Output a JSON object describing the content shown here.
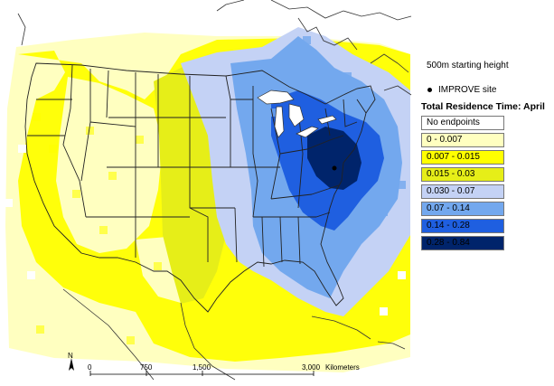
{
  "legend": {
    "height_label": "500m starting height",
    "site_label": "IMPROVE site",
    "title": "Total Residence Time: April",
    "classes": [
      {
        "label": "No endpoints",
        "color": "#ffffff"
      },
      {
        "label": "0 - 0.007",
        "color": "#ffffc0"
      },
      {
        "label": "0.007 - 0.015",
        "color": "#ffff00"
      },
      {
        "label": "0.015 - 0.03",
        "color": "#e6ee18"
      },
      {
        "label": "0.030 - 0.07",
        "color": "#c4d2f5"
      },
      {
        "label": "0.07 - 0.14",
        "color": "#73a8ee"
      },
      {
        "label": "0.14 - 0.28",
        "color": "#1f5fe0"
      },
      {
        "label": "0.28 - 0.84",
        "color": "#00246b"
      }
    ]
  },
  "scale_bar": {
    "north_label": "N",
    "ticks": [
      "0",
      "750",
      "1,500",
      "3,000"
    ],
    "unit_label": "Kilometers"
  }
}
